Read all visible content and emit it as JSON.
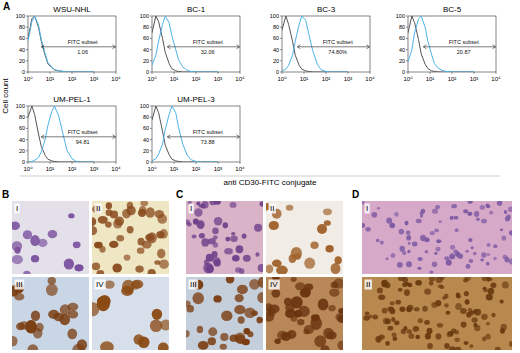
{
  "panel_a_label": "A",
  "axis_labels": {
    "y": "Cell count",
    "x": "anti CD30-FITC conjugate"
  },
  "chart_data": [
    {
      "type": "line",
      "title": "WSU-NHL",
      "log": "x",
      "x": [
        1,
        1.5,
        2,
        3,
        4,
        6,
        8,
        12,
        16,
        25,
        40,
        60,
        100,
        160,
        250,
        400,
        1000
      ],
      "xlim": [
        1,
        10000
      ],
      "xticks": [
        {
          "value": 1,
          "label": "10⁰"
        },
        {
          "value": 10,
          "label": "10¹"
        },
        {
          "value": 100,
          "label": "10²"
        },
        {
          "value": 1000,
          "label": "10³"
        },
        {
          "value": 10000,
          "label": "10⁴"
        }
      ],
      "ylim": [
        0,
        100
      ],
      "yticks": [
        0,
        20,
        40,
        60,
        80,
        100
      ],
      "series": [
        {
          "color": "#555555",
          "values": [
            60,
            95,
            100,
            80,
            55,
            30,
            15,
            8,
            4,
            2,
            1,
            0,
            0,
            0,
            0,
            0,
            0
          ]
        },
        {
          "color": "#4fb3e8",
          "values": [
            55,
            90,
            100,
            84,
            58,
            33,
            17,
            9,
            4,
            2,
            1,
            0,
            0,
            0,
            0,
            0,
            0
          ]
        }
      ],
      "gate": {
        "text": "FITC subset",
        "value": 1.06,
        "from": 4,
        "to": 10000,
        "level": 45
      }
    },
    {
      "type": "line",
      "title": "BC-1",
      "log": "x",
      "x": [
        1,
        1.5,
        2,
        3,
        4,
        6,
        8,
        12,
        16,
        25,
        40,
        60,
        100,
        160,
        250,
        400,
        1000
      ],
      "xlim": [
        1,
        10000
      ],
      "xticks": [
        {
          "value": 1,
          "label": "10⁰"
        },
        {
          "value": 10,
          "label": "10¹"
        },
        {
          "value": 100,
          "label": "10²"
        },
        {
          "value": 1000,
          "label": "10³"
        },
        {
          "value": 10000,
          "label": "10⁴"
        }
      ],
      "ylim": [
        0,
        100
      ],
      "yticks": [
        0,
        20,
        40,
        60,
        80,
        100
      ],
      "series": [
        {
          "color": "#555555",
          "values": [
            70,
            100,
            90,
            60,
            35,
            15,
            6,
            2,
            1,
            0,
            0,
            0,
            0,
            0,
            0,
            0,
            0
          ]
        },
        {
          "color": "#4fb3e8",
          "values": [
            12,
            30,
            55,
            85,
            100,
            88,
            65,
            40,
            22,
            9,
            3,
            1,
            0,
            0,
            0,
            0,
            0
          ]
        }
      ],
      "gate": {
        "text": "FITC subset",
        "value": 32.06,
        "from": 5,
        "to": 10000,
        "level": 45
      }
    },
    {
      "type": "line",
      "title": "BC-3",
      "log": "x",
      "x": [
        1,
        1.5,
        2,
        3,
        4,
        6,
        8,
        12,
        16,
        25,
        40,
        60,
        100,
        160,
        250,
        400,
        1000
      ],
      "xlim": [
        1,
        10000
      ],
      "xticks": [
        {
          "value": 1,
          "label": "10⁰"
        },
        {
          "value": 10,
          "label": "10¹"
        },
        {
          "value": 100,
          "label": "10²"
        },
        {
          "value": 1000,
          "label": "10³"
        },
        {
          "value": 10000,
          "label": "10⁴"
        }
      ],
      "ylim": [
        0,
        100
      ],
      "yticks": [
        0,
        20,
        40,
        60,
        80,
        100
      ],
      "series": [
        {
          "color": "#555555",
          "values": [
            75,
            100,
            85,
            55,
            30,
            12,
            5,
            2,
            1,
            0,
            0,
            0,
            0,
            0,
            0,
            0,
            0
          ]
        },
        {
          "color": "#4fb3e8",
          "values": [
            2,
            5,
            12,
            30,
            55,
            85,
            100,
            92,
            70,
            38,
            14,
            4,
            1,
            0,
            0,
            0,
            0
          ]
        }
      ],
      "gate": {
        "text": "FITC subset",
        "value": 74.8,
        "value_label": "74.80%",
        "from": 5,
        "to": 10000,
        "level": 45
      }
    },
    {
      "type": "line",
      "title": "BC-5",
      "log": "x",
      "x": [
        1,
        1.5,
        2,
        3,
        4,
        6,
        8,
        12,
        16,
        25,
        40,
        60,
        100,
        160,
        250,
        400,
        1000
      ],
      "xlim": [
        1,
        10000
      ],
      "xticks": [
        {
          "value": 1,
          "label": "10⁰"
        },
        {
          "value": 10,
          "label": "10¹"
        },
        {
          "value": 100,
          "label": "10²"
        },
        {
          "value": 1000,
          "label": "10³"
        },
        {
          "value": 10000,
          "label": "10⁴"
        }
      ],
      "ylim": [
        0,
        100
      ],
      "yticks": [
        0,
        20,
        40,
        60,
        80,
        100
      ],
      "series": [
        {
          "color": "#555555",
          "values": [
            70,
            100,
            88,
            58,
            32,
            14,
            6,
            2,
            1,
            0,
            0,
            0,
            0,
            0,
            0,
            0,
            0
          ]
        },
        {
          "color": "#4fb3e8",
          "values": [
            18,
            40,
            70,
            95,
            100,
            80,
            55,
            30,
            15,
            6,
            2,
            1,
            0,
            0,
            0,
            0,
            0
          ]
        }
      ],
      "gate": {
        "text": "FITC subset",
        "value": 20.87,
        "from": 5,
        "to": 10000,
        "level": 45
      }
    },
    {
      "type": "line",
      "title": "UM-PEL-1",
      "log": "x",
      "x": [
        1,
        1.5,
        2,
        3,
        4,
        6,
        8,
        12,
        16,
        25,
        40,
        60,
        100,
        160,
        250,
        400,
        1000
      ],
      "xlim": [
        1,
        10000
      ],
      "xticks": [
        {
          "value": 1,
          "label": "10⁰"
        },
        {
          "value": 10,
          "label": "10¹"
        },
        {
          "value": 100,
          "label": "10²"
        },
        {
          "value": 1000,
          "label": "10³"
        },
        {
          "value": 10000,
          "label": "10⁴"
        }
      ],
      "ylim": [
        0,
        100
      ],
      "yticks": [
        0,
        20,
        40,
        60,
        80,
        100
      ],
      "series": [
        {
          "color": "#555555",
          "values": [
            80,
            100,
            85,
            50,
            28,
            12,
            5,
            2,
            1,
            0,
            0,
            0,
            0,
            0,
            0,
            0,
            0
          ]
        },
        {
          "color": "#4fb3e8",
          "values": [
            0,
            1,
            3,
            8,
            18,
            40,
            65,
            90,
            100,
            82,
            48,
            20,
            6,
            1,
            0,
            0,
            0
          ]
        }
      ],
      "gate": {
        "text": "FITC subset",
        "value": 94.81,
        "from": 4,
        "to": 10000,
        "level": 45
      }
    },
    {
      "type": "line",
      "title": "UM-PEL-3",
      "log": "x",
      "x": [
        1,
        1.5,
        2,
        3,
        4,
        6,
        8,
        12,
        16,
        25,
        40,
        60,
        100,
        160,
        250,
        400,
        1000
      ],
      "xlim": [
        1,
        10000
      ],
      "xticks": [
        {
          "value": 1,
          "label": "10⁰"
        },
        {
          "value": 10,
          "label": "10¹"
        },
        {
          "value": 100,
          "label": "10²"
        },
        {
          "value": 1000,
          "label": "10³"
        },
        {
          "value": 10000,
          "label": "10⁴"
        }
      ],
      "ylim": [
        0,
        100
      ],
      "yticks": [
        0,
        20,
        40,
        60,
        80,
        100
      ],
      "series": [
        {
          "color": "#555555",
          "values": [
            75,
            100,
            88,
            55,
            30,
            13,
            5,
            2,
            1,
            0,
            0,
            0,
            0,
            0,
            0,
            0,
            0
          ]
        },
        {
          "color": "#4fb3e8",
          "values": [
            2,
            6,
            14,
            32,
            58,
            85,
            100,
            88,
            62,
            32,
            12,
            4,
            1,
            0,
            0,
            0,
            0
          ]
        }
      ],
      "gate": {
        "text": "FITC subset",
        "value": 73.88,
        "from": 5,
        "to": 10000,
        "level": 45
      }
    }
  ],
  "micrographs": [
    {
      "label": "B",
      "tiles": [
        "I",
        "II",
        "III",
        "IV"
      ]
    },
    {
      "label": "C",
      "tiles": [
        "I",
        "II",
        "III",
        "IV"
      ]
    },
    {
      "label": "D",
      "tiles": [
        "I",
        "II"
      ]
    }
  ]
}
